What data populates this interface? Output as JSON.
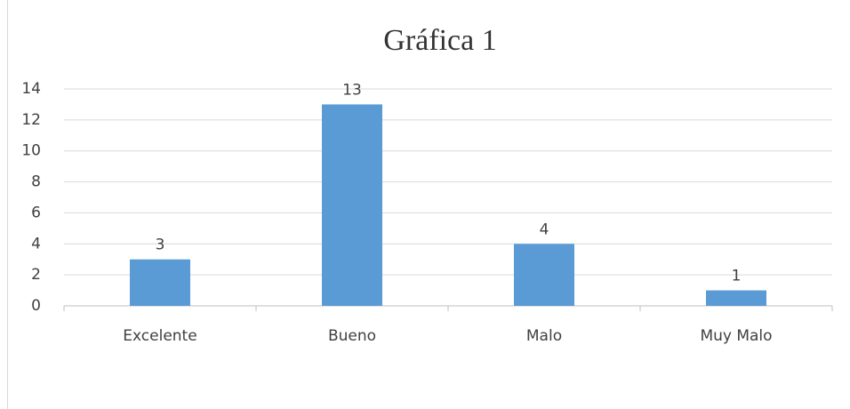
{
  "chart_data": {
    "type": "bar",
    "title": "Gráfica 1",
    "categories": [
      "Excelente",
      "Bueno",
      "Malo",
      "Muy Malo"
    ],
    "values": [
      3,
      13,
      4,
      1
    ],
    "color": "#5b9bd5",
    "ylim": [
      0,
      14
    ],
    "yticks": [
      0,
      2,
      4,
      6,
      8,
      10,
      12,
      14
    ],
    "grid": true,
    "data_labels": true
  }
}
